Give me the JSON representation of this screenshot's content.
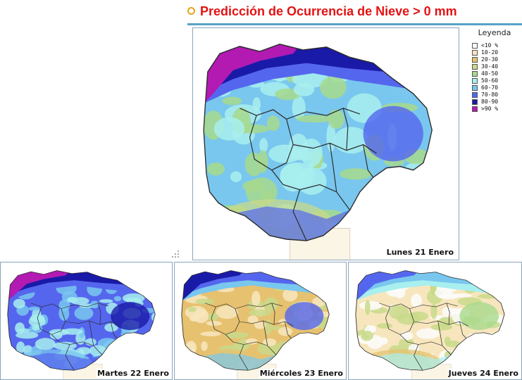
{
  "title": "Predicción de Ocurrencia de Nieve > 0 mm",
  "colors": {
    "title": "#e41212",
    "title_ring": "#e8a21a",
    "rule": "#5aa0c8",
    "panel_border": "#8aa4bc",
    "boundary": "#2a2a2a",
    "outside_fill": "#fbf5e6"
  },
  "legend": {
    "title": "Leyenda",
    "items": [
      {
        "label": "<10 %",
        "color": "#fcfcfc"
      },
      {
        "label": "10-20",
        "color": "#f7e6bd"
      },
      {
        "label": "20-30",
        "color": "#e6c170"
      },
      {
        "label": "30-40",
        "color": "#c8d98a"
      },
      {
        "label": "40-50",
        "color": "#a7d98c"
      },
      {
        "label": "50-60",
        "color": "#a8efef"
      },
      {
        "label": "60-70",
        "color": "#79c7ee"
      },
      {
        "label": "70-80",
        "color": "#5566ee"
      },
      {
        "label": "80-90",
        "color": "#1a1aa8"
      },
      {
        "label": ">90 %",
        "color": "#b21ab2"
      }
    ]
  },
  "maps": [
    {
      "label": "Lunes 21 Enero",
      "north_band": [
        "#b21ab2",
        "#1a1aa8",
        "#5566ee"
      ],
      "body": [
        "#79c7ee",
        "#a8efef",
        "#a7d98c"
      ],
      "east": "#5566ee",
      "south": "#c8d98a"
    },
    {
      "label": "Martes 22 Enero",
      "north_band": [
        "#b21ab2",
        "#1a1aa8",
        "#5566ee"
      ],
      "body": [
        "#5566ee",
        "#79c7ee",
        "#a8efef"
      ],
      "east": "#1a1aa8",
      "south": "#79c7ee"
    },
    {
      "label": "Miércoles 23 Enero",
      "north_band": [
        "#1a1aa8",
        "#5566ee",
        "#79c7ee"
      ],
      "body": [
        "#e6c170",
        "#f7e6bd",
        "#c8d98a"
      ],
      "east": "#5566ee",
      "south": "#e6c170"
    },
    {
      "label": "Jueves 24 Enero",
      "north_band": [
        "#5566ee",
        "#79c7ee",
        "#a8efef"
      ],
      "body": [
        "#f7e6bd",
        "#fcfcfc",
        "#c8d98a"
      ],
      "east": "#a7d98c",
      "south": "#e6c170"
    }
  ]
}
